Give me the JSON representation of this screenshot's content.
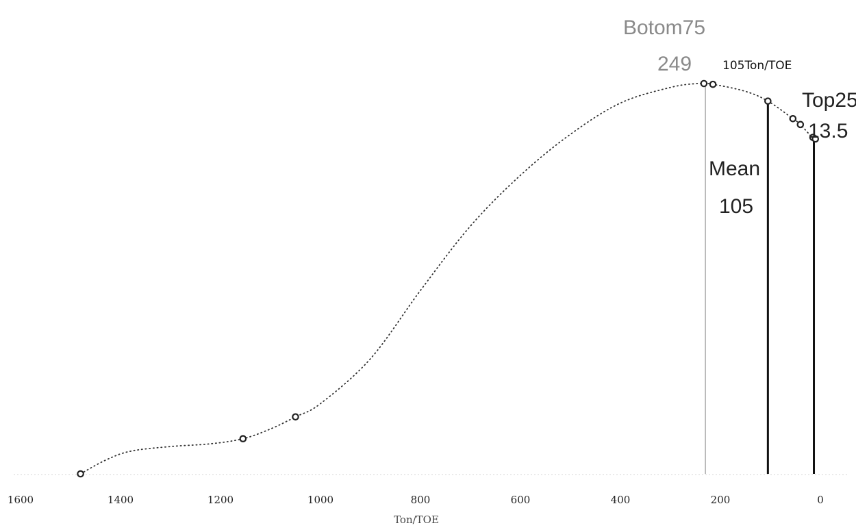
{
  "chart_data": {
    "type": "line",
    "title": "",
    "xlabel": "Ton/TOE",
    "ylabel": "",
    "xlim": [
      1600,
      0
    ],
    "x_reversed": true,
    "x_ticks": [
      {
        "value": 1600,
        "label": "1600"
      },
      {
        "value": 1400,
        "label": "1400"
      },
      {
        "value": 1200,
        "label": "1200"
      },
      {
        "value": 1000,
        "label": "1000"
      },
      {
        "value": 800,
        "label": "800"
      },
      {
        "value": 600,
        "label": "600"
      },
      {
        "value": 400,
        "label": "400"
      },
      {
        "value": 200,
        "label": "200"
      },
      {
        "value": 0,
        "label": "0"
      }
    ],
    "ylim": [
      0,
      1
    ],
    "grid": false,
    "line_style": "dotted",
    "line_color": "#333333",
    "curve": [
      {
        "x": 1480,
        "y": 0.0
      },
      {
        "x": 1430,
        "y": 0.035
      },
      {
        "x": 1380,
        "y": 0.058
      },
      {
        "x": 1300,
        "y": 0.07
      },
      {
        "x": 1220,
        "y": 0.077
      },
      {
        "x": 1155,
        "y": 0.09
      },
      {
        "x": 1100,
        "y": 0.115
      },
      {
        "x": 1050,
        "y": 0.146
      },
      {
        "x": 1000,
        "y": 0.18
      },
      {
        "x": 900,
        "y": 0.295
      },
      {
        "x": 800,
        "y": 0.47
      },
      {
        "x": 700,
        "y": 0.635
      },
      {
        "x": 600,
        "y": 0.765
      },
      {
        "x": 500,
        "y": 0.87
      },
      {
        "x": 400,
        "y": 0.95
      },
      {
        "x": 300,
        "y": 0.99
      },
      {
        "x": 245,
        "y": 1.0
      },
      {
        "x": 215,
        "y": 0.998
      },
      {
        "x": 150,
        "y": 0.98
      },
      {
        "x": 105,
        "y": 0.955
      },
      {
        "x": 55,
        "y": 0.91
      },
      {
        "x": 40,
        "y": 0.895
      },
      {
        "x": 15,
        "y": 0.86
      },
      {
        "x": 10,
        "y": 0.858
      }
    ],
    "markers": [
      {
        "x": 1480,
        "y": 0.0
      },
      {
        "x": 1155,
        "y": 0.09
      },
      {
        "x": 1050,
        "y": 0.146
      },
      {
        "x": 233,
        "y": 1.0
      },
      {
        "x": 215,
        "y": 0.998
      },
      {
        "x": 105,
        "y": 0.955
      },
      {
        "x": 55,
        "y": 0.91
      },
      {
        "x": 40,
        "y": 0.895
      },
      {
        "x": 15,
        "y": 0.862
      },
      {
        "x": 10,
        "y": 0.858
      }
    ],
    "vertical_lines": [
      {
        "x": 230,
        "y": 1.0,
        "color": "#aaaaaa"
      },
      {
        "x": 105,
        "y": 0.955,
        "color": "#111111"
      },
      {
        "x": 13,
        "y": 0.86,
        "color": "#111111"
      }
    ],
    "annotations": {
      "bottom75_text": "Botom75",
      "bottom75_value": "249",
      "mean_text": "Mean",
      "mean_value": "105",
      "mean_unit": "105Ton/TOE",
      "top25_text": "Top25",
      "top25_value": "13.5"
    }
  }
}
